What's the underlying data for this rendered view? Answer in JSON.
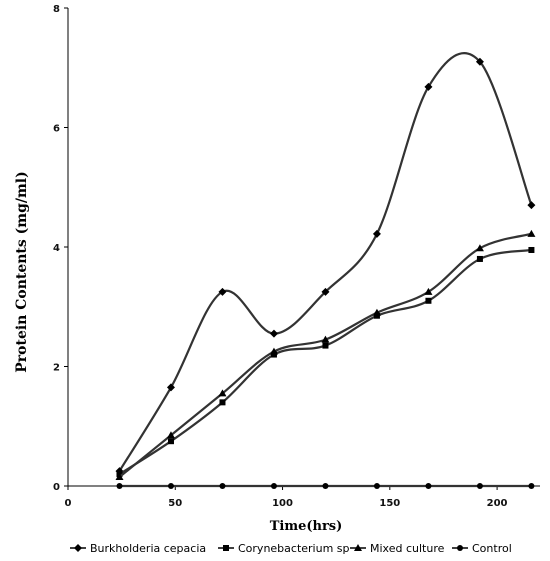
{
  "chart_data": {
    "type": "line",
    "xlabel": "Time(hrs)",
    "ylabel": "Protein Contents (mg/ml)",
    "xlim": [
      0,
      220
    ],
    "ylim": [
      0,
      8
    ],
    "xticks": [
      0,
      50,
      100,
      150,
      200
    ],
    "yticks": [
      0,
      2,
      4,
      6,
      8
    ],
    "grid": false,
    "legend_position": "bottom",
    "x": [
      24,
      48,
      72,
      96,
      120,
      144,
      168,
      192,
      216
    ],
    "series": [
      {
        "name": "Burkholderia cepacia",
        "marker": "diamond",
        "values": [
          0.25,
          1.65,
          3.25,
          2.55,
          3.25,
          4.22,
          6.68,
          7.1,
          4.7
        ]
      },
      {
        "name": "Corynebacterium sp",
        "marker": "square",
        "values": [
          0.2,
          0.75,
          1.4,
          2.2,
          2.35,
          2.85,
          3.1,
          3.8,
          3.95
        ]
      },
      {
        "name": "Mixed culture",
        "marker": "triangle",
        "values": [
          0.15,
          0.85,
          1.55,
          2.25,
          2.45,
          2.9,
          3.25,
          3.98,
          4.22
        ]
      },
      {
        "name": "Control",
        "marker": "circle",
        "values": [
          0,
          0,
          0,
          0,
          0,
          0,
          0,
          0,
          0
        ]
      }
    ]
  }
}
